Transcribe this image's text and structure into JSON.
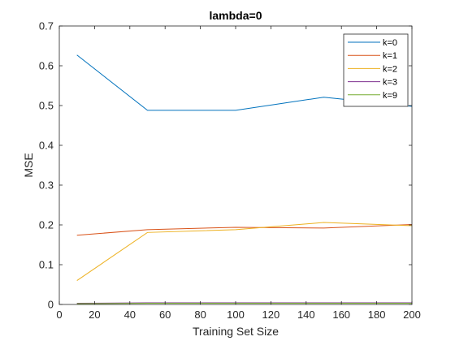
{
  "chart_data": {
    "type": "line",
    "title": "lambda=0",
    "xlabel": "Training Set Size",
    "ylabel": "MSE",
    "xlim": [
      0,
      200
    ],
    "ylim": [
      0,
      0.7
    ],
    "xticks": [
      0,
      20,
      40,
      60,
      80,
      100,
      120,
      140,
      160,
      180,
      200
    ],
    "yticks": [
      0,
      0.1,
      0.2,
      0.3,
      0.4,
      0.5,
      0.6,
      0.7
    ],
    "x": [
      10,
      50,
      100,
      150,
      200
    ],
    "grid": false,
    "legend_position": "top-right",
    "series": [
      {
        "name": "k=0",
        "color": "#0072BD",
        "values": [
          0.627,
          0.488,
          0.488,
          0.521,
          0.498
        ]
      },
      {
        "name": "k=1",
        "color": "#D95319",
        "values": [
          0.174,
          0.188,
          0.194,
          0.192,
          0.201
        ]
      },
      {
        "name": "k=2",
        "color": "#EDB120",
        "values": [
          0.06,
          0.181,
          0.188,
          0.206,
          0.198
        ]
      },
      {
        "name": "k=3",
        "color": "#7E2F8E",
        "values": [
          0.003,
          0.004,
          0.004,
          0.004,
          0.004
        ]
      },
      {
        "name": "k=9",
        "color": "#77AC30",
        "values": [
          0.002,
          0.003,
          0.003,
          0.003,
          0.003
        ]
      }
    ]
  }
}
